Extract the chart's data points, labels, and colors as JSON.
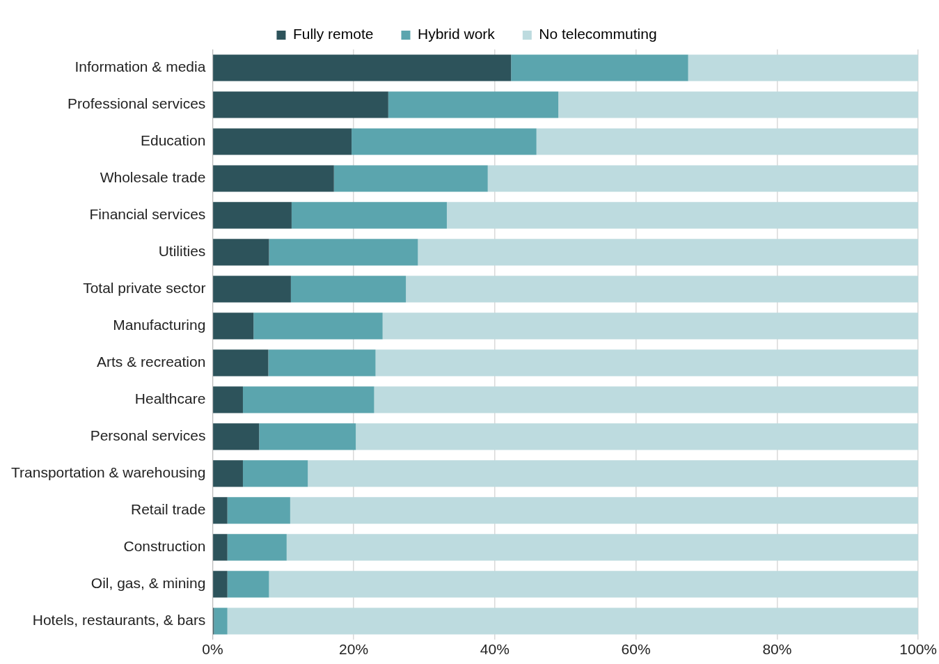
{
  "chart_data": {
    "type": "bar",
    "orientation": "horizontal",
    "stacked": true,
    "categories": [
      "Information & media",
      "Professional services",
      "Education",
      "Wholesale trade",
      "Financial services",
      "Utilities",
      "Total private sector",
      "Manufacturing",
      "Arts & recreation",
      "Healthcare",
      "Personal services",
      "Transportation & warehousing",
      "Retail trade",
      "Construction",
      "Oil, gas, & mining",
      "Hotels, restaurants, & bars"
    ],
    "series": [
      {
        "name": "Fully remote",
        "color": "#2d535b",
        "values": [
          42.3,
          24.9,
          19.7,
          17.2,
          11.2,
          8.0,
          11.1,
          5.8,
          7.9,
          4.3,
          6.6,
          4.3,
          2.1,
          2.1,
          2.1,
          0.2
        ]
      },
      {
        "name": "Hybrid work",
        "color": "#5ba5ae",
        "values": [
          25.1,
          24.1,
          26.2,
          21.8,
          22.0,
          21.1,
          16.3,
          18.3,
          15.2,
          18.6,
          13.7,
          9.2,
          8.9,
          8.4,
          5.9,
          1.9
        ]
      },
      {
        "name": "No telecommuting",
        "color": "#bddbdf",
        "values": [
          32.6,
          51.0,
          54.1,
          61.0,
          66.8,
          70.9,
          72.6,
          75.9,
          76.9,
          77.1,
          79.7,
          86.5,
          89.0,
          89.5,
          92.0,
          97.9
        ]
      }
    ],
    "xlim": [
      0,
      100
    ],
    "xticks": [
      {
        "value": 0,
        "label": "0%"
      },
      {
        "value": 20,
        "label": "20%"
      },
      {
        "value": 40,
        "label": "40%"
      },
      {
        "value": 60,
        "label": "60%"
      },
      {
        "value": 80,
        "label": "80%"
      },
      {
        "value": 100,
        "label": "100%"
      }
    ],
    "grid": "x",
    "legend": "top"
  }
}
